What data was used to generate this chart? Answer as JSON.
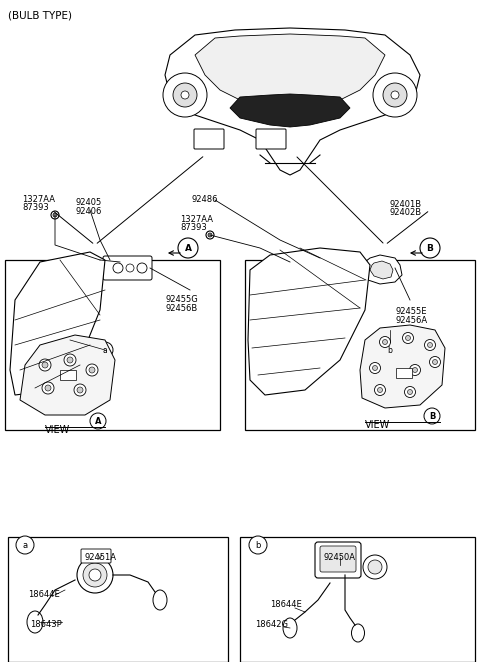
{
  "title": "(BULB TYPE)",
  "bg_color": "#ffffff",
  "line_color": "#000000",
  "text_color": "#000000",
  "box_line_color": "#555555",
  "fig_width": 4.8,
  "fig_height": 6.62,
  "dpi": 100,
  "labels": {
    "bulb_type": "(BULB TYPE)",
    "left_screw1": "1327AA",
    "left_screw2": "87393",
    "left_part1": "92405",
    "left_part2": "92406",
    "center_part": "92486",
    "center_screw1": "1327AA",
    "center_screw2": "87393",
    "right_part1": "92401B",
    "right_part2": "92402B",
    "left_lens1": "92455G",
    "left_lens2": "92456B",
    "right_lens1": "92455E",
    "right_lens2": "92456A",
    "view_a": "VIEW",
    "view_b": "VIEW",
    "box_a_part1": "92451A",
    "box_a_part2": "18644E",
    "box_a_part3": "18643P",
    "box_b_part1": "92450A",
    "box_b_part2": "18644E",
    "box_b_part3": "18642G"
  }
}
